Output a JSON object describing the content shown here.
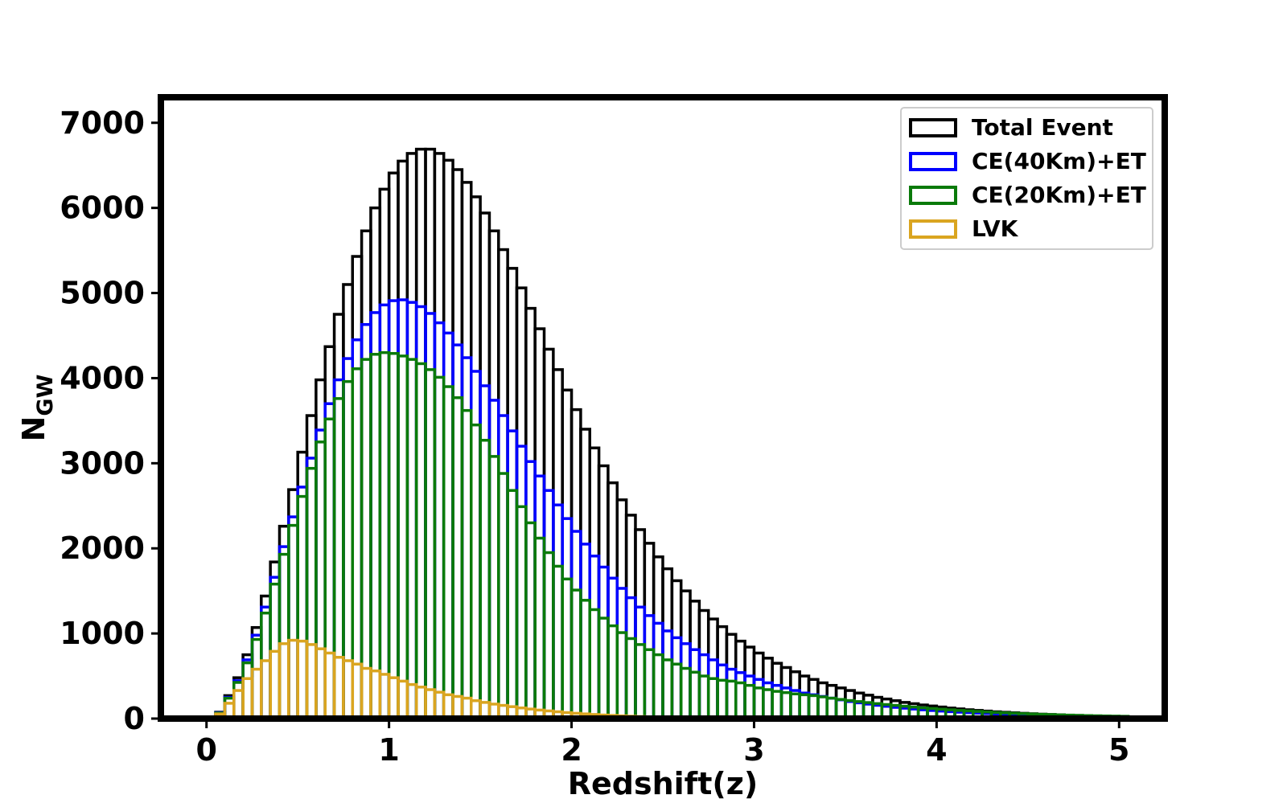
{
  "chart_data": {
    "type": "bar",
    "subtype": "step-histogram-overlay",
    "xlabel": "Redshift(z)",
    "ylabel_main": "N",
    "ylabel_sub": "GW",
    "xlim": [
      -0.25,
      5.25
    ],
    "ylim": [
      0,
      7300
    ],
    "xticks": [
      0,
      1,
      2,
      3,
      4,
      5
    ],
    "yticks": [
      0,
      1000,
      2000,
      3000,
      4000,
      5000,
      6000,
      7000
    ],
    "bin_width": 0.05,
    "legend_position": "top-right",
    "series": [
      {
        "name": "Total Event",
        "color": "#000000",
        "values": [
          0,
          75,
          270,
          480,
          750,
          1070,
          1440,
          1840,
          2260,
          2690,
          3130,
          3560,
          3980,
          4370,
          4750,
          5100,
          5430,
          5730,
          6000,
          6220,
          6410,
          6550,
          6640,
          6690,
          6690,
          6640,
          6560,
          6450,
          6300,
          6130,
          5940,
          5730,
          5510,
          5290,
          5060,
          4820,
          4580,
          4340,
          4100,
          3860,
          3630,
          3400,
          3180,
          2970,
          2770,
          2570,
          2390,
          2220,
          2060,
          1900,
          1760,
          1620,
          1500,
          1380,
          1270,
          1170,
          1080,
          990,
          910,
          840,
          770,
          710,
          650,
          600,
          550,
          500,
          460,
          420,
          390,
          360,
          330,
          300,
          275,
          250,
          230,
          210,
          190,
          175,
          160,
          148,
          136,
          124,
          114,
          104,
          96,
          88,
          80,
          74,
          68,
          62,
          57,
          52,
          48,
          44,
          40,
          37,
          34,
          31,
          28,
          26,
          24
        ]
      },
      {
        "name": "CE(40Km)+ET",
        "color": "#0000ff",
        "values": [
          0,
          70,
          250,
          445,
          690,
          980,
          1310,
          1660,
          2020,
          2370,
          2720,
          3060,
          3390,
          3700,
          3980,
          4230,
          4450,
          4630,
          4770,
          4860,
          4910,
          4920,
          4890,
          4840,
          4760,
          4650,
          4530,
          4390,
          4240,
          4080,
          3910,
          3740,
          3560,
          3380,
          3200,
          3020,
          2850,
          2680,
          2510,
          2350,
          2200,
          2050,
          1910,
          1780,
          1650,
          1530,
          1420,
          1310,
          1210,
          1120,
          1030,
          950,
          880,
          810,
          750,
          690,
          630,
          580,
          540,
          500,
          460,
          420,
          390,
          360,
          330,
          300,
          280,
          260,
          240,
          220,
          200,
          185,
          170,
          156,
          144,
          132,
          122,
          112,
          103,
          95,
          88,
          81,
          75,
          69,
          64,
          59,
          55,
          51,
          47,
          44,
          41,
          38,
          35,
          33,
          31,
          29,
          27,
          26,
          24,
          23,
          22
        ]
      },
      {
        "name": "CE(20Km)+ET",
        "color": "#0a7a0a",
        "values": [
          0,
          65,
          240,
          425,
          655,
          930,
          1240,
          1580,
          1930,
          2270,
          2610,
          2940,
          3250,
          3520,
          3760,
          3960,
          4110,
          4220,
          4280,
          4300,
          4290,
          4260,
          4220,
          4170,
          4100,
          4010,
          3900,
          3770,
          3620,
          3450,
          3270,
          3080,
          2880,
          2680,
          2490,
          2300,
          2120,
          1950,
          1790,
          1640,
          1510,
          1390,
          1280,
          1180,
          1090,
          1010,
          940,
          870,
          810,
          750,
          690,
          640,
          590,
          545,
          500,
          470,
          450,
          440,
          420,
          390,
          360,
          340,
          320,
          305,
          290,
          280,
          270,
          255,
          240,
          225,
          212,
          200,
          188,
          176,
          165,
          155,
          145,
          135,
          126,
          118,
          110,
          103,
          96,
          90,
          84,
          78,
          72,
          67,
          62,
          58,
          54,
          50,
          47,
          44,
          41,
          38,
          35,
          33,
          31,
          29,
          27
        ]
      },
      {
        "name": "LVK",
        "color": "#daa520",
        "values": [
          0,
          55,
          180,
          330,
          470,
          580,
          680,
          790,
          880,
          920,
          910,
          870,
          820,
          770,
          720,
          680,
          640,
          590,
          560,
          520,
          480,
          440,
          400,
          370,
          340,
          310,
          280,
          260,
          240,
          210,
          190,
          170,
          155,
          140,
          125,
          112,
          100,
          90,
          80,
          70,
          62,
          55,
          48,
          42,
          37,
          32,
          28,
          24,
          21,
          18,
          15,
          13,
          11,
          9,
          8,
          7,
          6,
          5,
          4,
          3,
          3,
          2,
          2,
          2,
          1,
          1,
          1,
          1,
          1,
          0,
          0,
          0,
          0,
          0,
          0,
          0,
          0,
          0,
          0,
          0,
          0,
          0,
          0,
          0,
          0,
          0,
          0,
          0,
          0,
          0,
          0,
          0,
          0,
          0,
          0,
          0,
          0,
          0,
          0,
          0,
          0
        ]
      }
    ]
  }
}
